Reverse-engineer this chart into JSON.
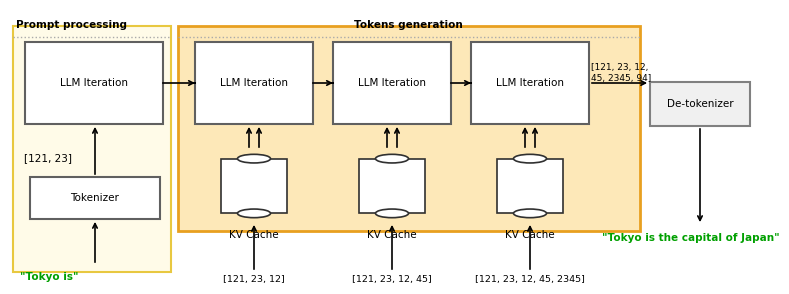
{
  "bg_color": "#ffffff",
  "prompt_bg": "#fffbe8",
  "prompt_border": "#e8c840",
  "tokens_bg": "#fde8b8",
  "tokens_border": "#e8a020",
  "llm_box_bg": "#ffffff",
  "llm_box_border": "#606060",
  "tokenizer_bg": "#ffffff",
  "tokenizer_border": "#606060",
  "detokenizer_bg": "#f0f0f0",
  "detokenizer_border": "#808080",
  "kvcache_color": "#303030",
  "arrow_color": "#000000",
  "green_text": "#00a000",
  "title_color": "#000000",
  "prompt_title": "Prompt processing",
  "tokens_title": "Tokens generation",
  "llm_label": "LLM Iteration",
  "tokenizer_label": "Tokenizer",
  "detokenizer_label": "De-tokenizer",
  "kvcache_label": "KV Cache",
  "input_text": "\"Tokyo is\"",
  "output_text": "\"Tokyo is the capital of Japan\"",
  "token_list_0": "[121, 23]",
  "token_list_1": "[121, 23, 12]",
  "token_list_2": "[121, 23, 12, 45]",
  "token_list_3": "[121, 23, 12, 45, 2345]",
  "token_list_out": "[121, 23, 12,\n45, 2345, 94]"
}
